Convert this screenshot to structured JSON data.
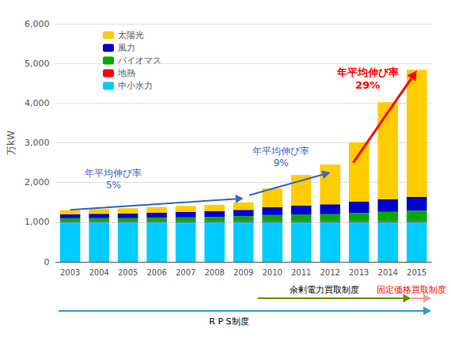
{
  "chart_data": {
    "type": "bar",
    "stacked": true,
    "categories": [
      "2003",
      "2004",
      "2005",
      "2006",
      "2007",
      "2008",
      "2009",
      "2010",
      "2011",
      "2012",
      "2013",
      "2014",
      "2015"
    ],
    "series": [
      {
        "name": "中小水力",
        "color": "#00CCFF",
        "values": [
          1000,
          1000,
          1000,
          1000,
          1000,
          1000,
          1000,
          1000,
          1000,
          1000,
          1000,
          1000,
          1000
        ]
      },
      {
        "name": "地熱",
        "color": "#FF0000",
        "values": [
          30,
          30,
          30,
          30,
          30,
          30,
          30,
          30,
          30,
          30,
          30,
          30,
          30
        ]
      },
      {
        "name": "バイオマス",
        "color": "#00AA00",
        "values": [
          70,
          70,
          70,
          80,
          90,
          100,
          120,
          150,
          160,
          170,
          200,
          230,
          260
        ]
      },
      {
        "name": "風力",
        "color": "#0000CC",
        "values": [
          100,
          110,
          120,
          130,
          140,
          150,
          160,
          200,
          230,
          250,
          290,
          320,
          350
        ]
      },
      {
        "name": "太陽光",
        "color": "#FFCC00",
        "values": [
          100,
          120,
          130,
          140,
          150,
          160,
          190,
          470,
          770,
          1000,
          1490,
          2440,
          3200
        ]
      }
    ],
    "y_label": "万kW",
    "ylim": [
      0,
      6000
    ],
    "yticks": [
      0,
      1000,
      2000,
      3000,
      4000,
      5000,
      6000
    ],
    "grid": true,
    "legend": "upper left",
    "annotations": [
      {
        "text": "年平均伸び率\n5%",
        "color": "#3366CC"
      },
      {
        "text": "年平均伸び率\n9%",
        "color": "#3366CC"
      },
      {
        "text": "年平均伸び率\n29%",
        "color": "#FF0000"
      },
      {
        "text": "R P S制度",
        "color": "black"
      },
      {
        "text": "余剰電力買取制度",
        "color": "black"
      },
      {
        "text": "固定価格買取制度",
        "color": "red"
      }
    ]
  }
}
